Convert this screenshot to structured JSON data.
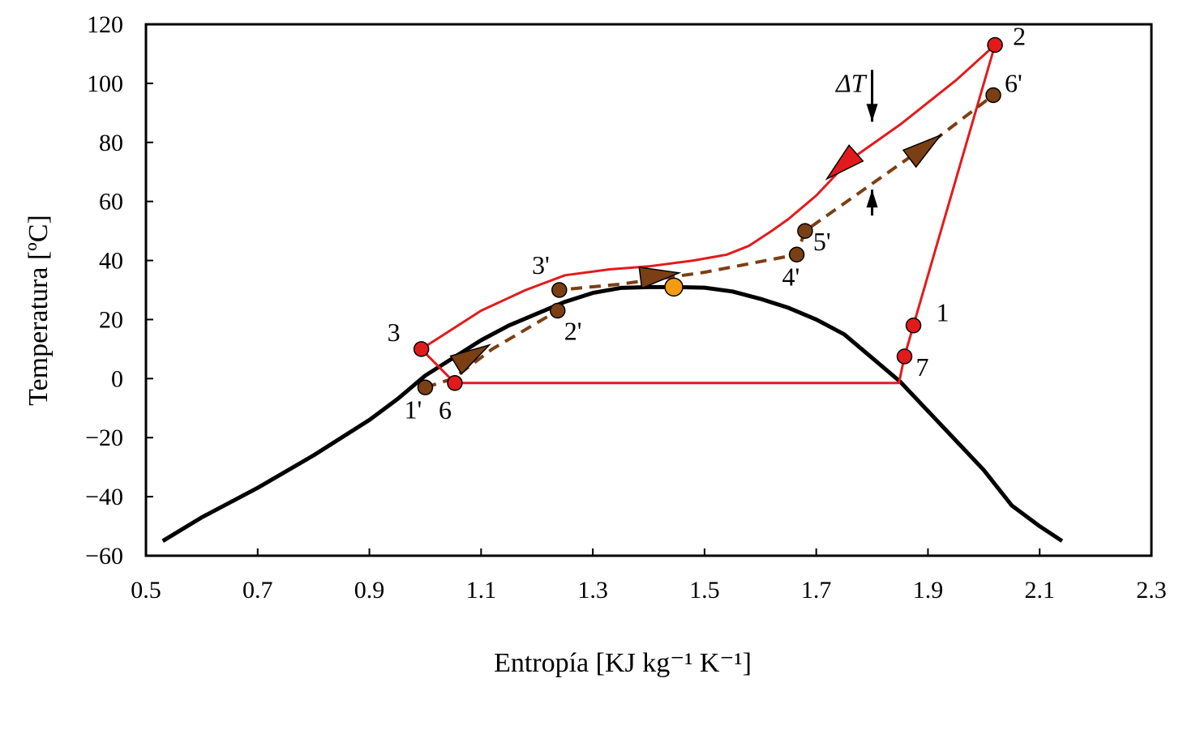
{
  "chart_data": {
    "type": "line",
    "title": "",
    "xlabel": "Entropía [KJ kg⁻¹ K⁻¹]",
    "ylabel": "Temperatura [ºC]",
    "xlim": [
      0.5,
      2.3
    ],
    "ylim": [
      -60,
      120
    ],
    "xticks": [
      0.5,
      0.7,
      0.9,
      1.1,
      1.3,
      1.5,
      1.7,
      1.9,
      2.1,
      2.3
    ],
    "xtick_labels": [
      "0.5",
      "0.7",
      "0.9",
      "1.1",
      "1.3",
      "1.5",
      "1.7",
      "1.9",
      "2.1",
      "2.3"
    ],
    "yticks": [
      -60,
      -40,
      -20,
      0,
      20,
      40,
      60,
      80,
      100,
      120
    ],
    "ytick_labels": [
      "−60",
      "−40",
      "−20",
      "0",
      "20",
      "40",
      "60",
      "80",
      "100",
      "120"
    ],
    "grid": false,
    "colors": {
      "saturation_dome": "#000000",
      "refrigerant_cycle": "#e31a1c",
      "secondary_fluid": "#7b3f14",
      "critical_point": "#f39c12",
      "delta_t_marker": "#000000"
    },
    "series": [
      {
        "name": "saturation-dome",
        "style": "solid",
        "points": [
          [
            0.53,
            -55
          ],
          [
            0.6,
            -47
          ],
          [
            0.7,
            -37
          ],
          [
            0.8,
            -26
          ],
          [
            0.9,
            -14
          ],
          [
            0.95,
            -7
          ],
          [
            1.0,
            1
          ],
          [
            1.05,
            7
          ],
          [
            1.1,
            13
          ],
          [
            1.15,
            18
          ],
          [
            1.2,
            22
          ],
          [
            1.25,
            26
          ],
          [
            1.3,
            29
          ],
          [
            1.35,
            30.7
          ],
          [
            1.4,
            31
          ],
          [
            1.45,
            31
          ],
          [
            1.5,
            30.8
          ],
          [
            1.55,
            29.5
          ],
          [
            1.6,
            27
          ],
          [
            1.65,
            24
          ],
          [
            1.7,
            20
          ],
          [
            1.75,
            15
          ],
          [
            1.8,
            7
          ],
          [
            1.85,
            -1
          ],
          [
            1.9,
            -11
          ],
          [
            1.95,
            -21
          ],
          [
            2.0,
            -31
          ],
          [
            2.05,
            -43
          ],
          [
            2.1,
            -50
          ],
          [
            2.14,
            -55
          ]
        ]
      },
      {
        "name": "refrigerant-cycle",
        "style": "solid",
        "points": [
          [
            1.874,
            18
          ],
          [
            2.02,
            113
          ],
          [
            1.95,
            101
          ],
          [
            1.85,
            86
          ],
          [
            1.76,
            74
          ],
          [
            1.7,
            62
          ],
          [
            1.65,
            54
          ],
          [
            1.62,
            50
          ],
          [
            1.58,
            45
          ],
          [
            1.54,
            42
          ],
          [
            1.48,
            40
          ],
          [
            1.4,
            38
          ],
          [
            1.33,
            37
          ],
          [
            1.25,
            35
          ],
          [
            1.18,
            30
          ],
          [
            1.1,
            23
          ],
          [
            0.993,
            10
          ],
          [
            1.053,
            -1.5
          ],
          [
            1.848,
            -1.5
          ],
          [
            1.858,
            7.5
          ],
          [
            1.874,
            18
          ]
        ]
      },
      {
        "name": "secondary-fluid",
        "style": "dashed",
        "points": [
          [
            1.0,
            -3
          ],
          [
            1.05,
            0
          ],
          [
            1.12,
            10
          ],
          [
            1.237,
            23
          ],
          [
            1.24,
            30
          ],
          [
            1.35,
            32
          ],
          [
            1.5,
            36
          ],
          [
            1.665,
            42
          ],
          [
            1.68,
            50
          ],
          [
            1.8,
            66
          ],
          [
            1.92,
            82
          ],
          [
            2.017,
            96
          ]
        ]
      }
    ],
    "points": [
      {
        "label": "1",
        "x": 1.874,
        "y": 18,
        "fluid": "refrigerant"
      },
      {
        "label": "2",
        "x": 2.02,
        "y": 113,
        "fluid": "refrigerant"
      },
      {
        "label": "3",
        "x": 0.993,
        "y": 10,
        "fluid": "refrigerant"
      },
      {
        "label": "6",
        "x": 1.053,
        "y": -1.5,
        "fluid": "refrigerant"
      },
      {
        "label": "7",
        "x": 1.858,
        "y": 7.5,
        "fluid": "refrigerant"
      },
      {
        "label": "1'",
        "x": 1.0,
        "y": -3,
        "fluid": "secondary"
      },
      {
        "label": "2'",
        "x": 1.237,
        "y": 23,
        "fluid": "secondary"
      },
      {
        "label": "3'",
        "x": 1.24,
        "y": 30,
        "fluid": "secondary"
      },
      {
        "label": "4'",
        "x": 1.665,
        "y": 42,
        "fluid": "secondary"
      },
      {
        "label": "5'",
        "x": 1.68,
        "y": 50,
        "fluid": "secondary"
      },
      {
        "label": "6'",
        "x": 2.017,
        "y": 96,
        "fluid": "secondary"
      }
    ],
    "critical_point": {
      "x": 1.445,
      "y": 31
    },
    "annotations": [
      {
        "text": "ΔT",
        "x": 1.8,
        "y_top": 87,
        "y_bottom": 64
      }
    ]
  }
}
